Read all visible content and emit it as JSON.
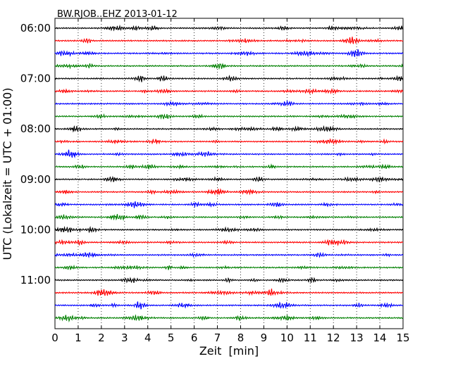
{
  "chart_data": {
    "type": "line",
    "title": "BW.RJOB..EHZ 2013-01-12",
    "xlabel": "Zeit  [min]",
    "ylabel": "UTC (Lokalzeit = UTC + 01:00)",
    "xlim": [
      0,
      15
    ],
    "x_ticks": [
      "0",
      "1",
      "2",
      "3",
      "4",
      "5",
      "6",
      "7",
      "8",
      "9",
      "10",
      "11",
      "12",
      "13",
      "14",
      "15"
    ],
    "y_tick_labels": [
      "06:00",
      "07:00",
      "08:00",
      "09:00",
      "10:00",
      "11:00"
    ],
    "y_tick_every_rows": 4,
    "rows_per_hour": 4,
    "minutes_per_row": 15,
    "num_rows": 24,
    "start_time": "06:00",
    "colors": [
      "#000000",
      "#ff0000",
      "#0000ff",
      "#008000"
    ],
    "grid": "vertical dotted lines at each minute",
    "legend": "none"
  }
}
